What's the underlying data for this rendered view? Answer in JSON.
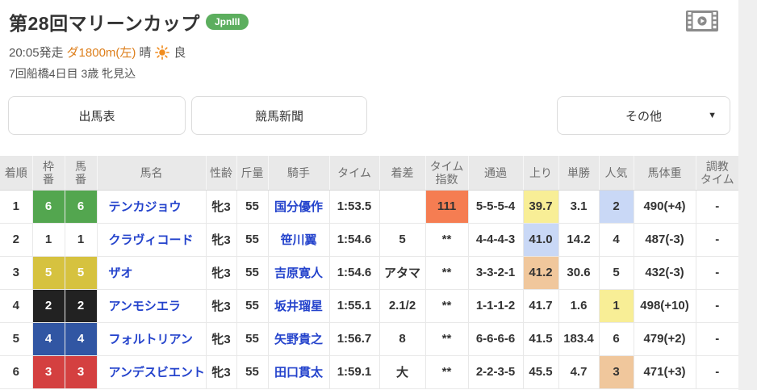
{
  "header": {
    "title": "第28回マリーンカップ",
    "grade_badge": "JpnIII",
    "start_time": "20:05発走",
    "course": "ダ1800m(左)",
    "weather_label": "晴",
    "going_label": "良",
    "meeting_info": "7回船橋4日目 3歳 牝見込"
  },
  "toolbar": {
    "race_card_label": "出馬表",
    "newspaper_label": "競馬新聞",
    "other_label": "その他",
    "dropdown_arrow": "▼"
  },
  "table": {
    "headers": [
      "着順",
      "枠\n番",
      "馬\n番",
      "馬名",
      "性齢",
      "斤量",
      "騎手",
      "タイム",
      "着差",
      "タイム\n指数",
      "通過",
      "上り",
      "単勝",
      "人気",
      "馬体重",
      "調教\nタイム"
    ],
    "rows": [
      {
        "rank": "1",
        "frame": "6",
        "horse_no": "6",
        "frame_color": "green",
        "horse": "テンカジョウ",
        "sex_age": "牝3",
        "carried": "55",
        "jockey": "国分優作",
        "time": "1:53.5",
        "margin": "",
        "time_index": "111",
        "time_index_hl": "orange",
        "passing": "5-5-5-4",
        "last3f": "39.7",
        "last3f_hl": "yellow",
        "win_odds": "3.1",
        "favorite": "2",
        "favorite_hl": "blue",
        "horse_weight": "490(+4)",
        "training": "-"
      },
      {
        "rank": "2",
        "frame": "1",
        "horse_no": "1",
        "frame_color": "white",
        "horse": "クラヴィコード",
        "sex_age": "牝3",
        "carried": "55",
        "jockey": "笹川翼",
        "time": "1:54.6",
        "margin": "5",
        "time_index": "**",
        "time_index_hl": "",
        "passing": "4-4-4-3",
        "last3f": "41.0",
        "last3f_hl": "blue",
        "win_odds": "14.2",
        "favorite": "4",
        "favorite_hl": "",
        "horse_weight": "487(-3)",
        "training": "-"
      },
      {
        "rank": "3",
        "frame": "5",
        "horse_no": "5",
        "frame_color": "yellow",
        "horse": "ザオ",
        "sex_age": "牝3",
        "carried": "55",
        "jockey": "吉原寛人",
        "time": "1:54.6",
        "margin": "アタマ",
        "time_index": "**",
        "time_index_hl": "",
        "passing": "3-3-2-1",
        "last3f": "41.2",
        "last3f_hl": "tan",
        "win_odds": "30.6",
        "favorite": "5",
        "favorite_hl": "",
        "horse_weight": "432(-3)",
        "training": "-"
      },
      {
        "rank": "4",
        "frame": "2",
        "horse_no": "2",
        "frame_color": "black",
        "horse": "アンモシエラ",
        "sex_age": "牝3",
        "carried": "55",
        "jockey": "坂井瑠星",
        "time": "1:55.1",
        "margin": "2.1/2",
        "time_index": "**",
        "time_index_hl": "",
        "passing": "1-1-1-2",
        "last3f": "41.7",
        "last3f_hl": "",
        "win_odds": "1.6",
        "favorite": "1",
        "favorite_hl": "yellow",
        "horse_weight": "498(+10)",
        "training": "-"
      },
      {
        "rank": "5",
        "frame": "4",
        "horse_no": "4",
        "frame_color": "blue",
        "horse": "フォルトリアン",
        "sex_age": "牝3",
        "carried": "55",
        "jockey": "矢野貴之",
        "time": "1:56.7",
        "margin": "8",
        "time_index": "**",
        "time_index_hl": "",
        "passing": "6-6-6-6",
        "last3f": "41.5",
        "last3f_hl": "",
        "win_odds": "183.4",
        "favorite": "6",
        "favorite_hl": "",
        "horse_weight": "479(+2)",
        "training": "-"
      },
      {
        "rank": "6",
        "frame": "3",
        "horse_no": "3",
        "frame_color": "red",
        "horse": "アンデスビエント",
        "sex_age": "牝3",
        "carried": "55",
        "jockey": "田口貫太",
        "time": "1:59.1",
        "margin": "大",
        "time_index": "**",
        "time_index_hl": "",
        "passing": "2-2-3-5",
        "last3f": "45.5",
        "last3f_hl": "",
        "win_odds": "4.7",
        "favorite": "3",
        "favorite_hl": "tan",
        "horse_weight": "471(+3)",
        "training": "-"
      }
    ]
  },
  "colors": {
    "frame": {
      "green": "#53a64f",
      "white": "#ffffff",
      "yellow": "#d6c23f",
      "black": "#222222",
      "blue": "#3156a3",
      "red": "#d44040"
    },
    "highlight": {
      "orange": "#f57d52",
      "yellow": "#f8ee96",
      "blue": "#c9d8f6",
      "tan": "#f0c79c"
    },
    "badge_green": "#5cae5e",
    "link_blue": "#2443cc",
    "course_orange": "#dd7e1a",
    "sun_orange": "#f08c1e",
    "icon_gray": "#8b8b8b"
  }
}
